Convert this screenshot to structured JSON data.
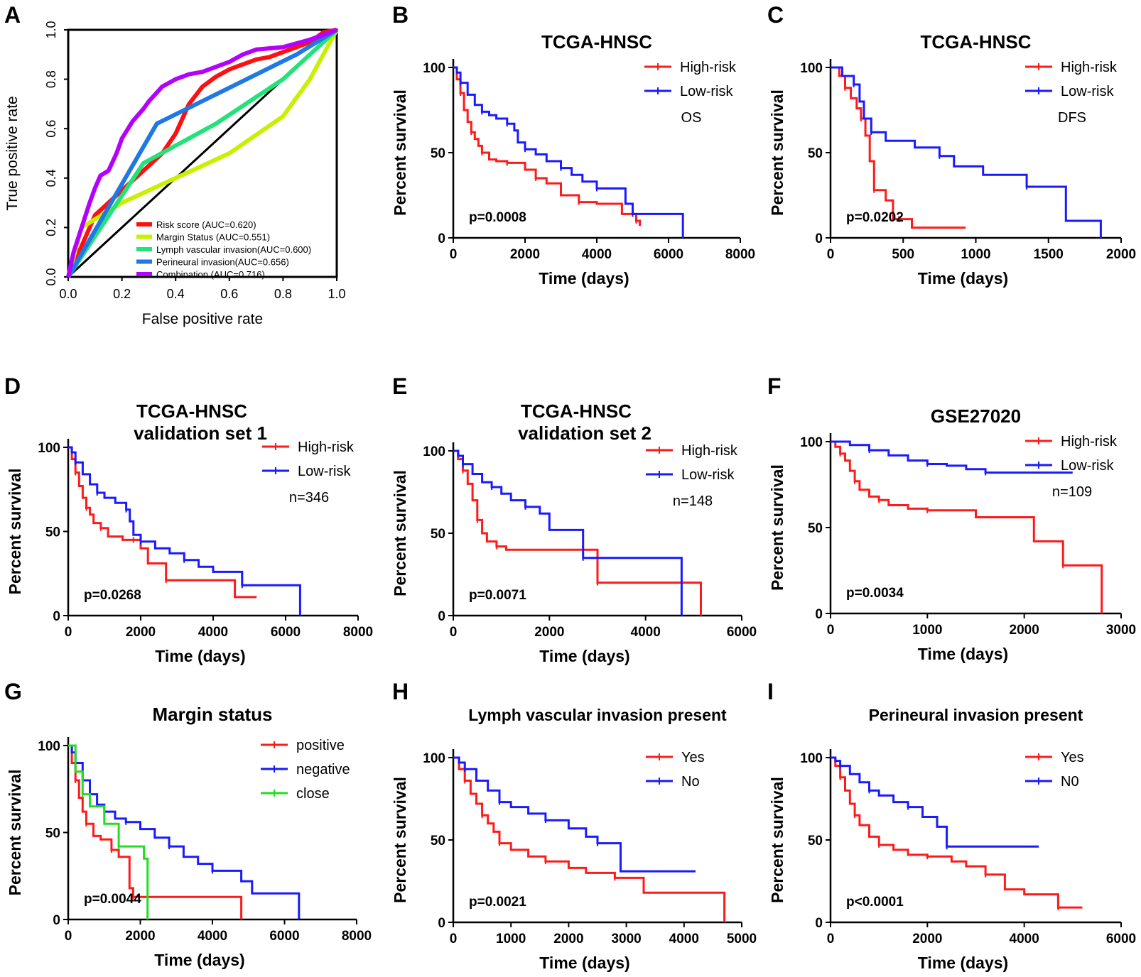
{
  "chart_data": [
    {
      "panel": "A",
      "type": "line",
      "xlabel": "False positive rate",
      "ylabel": "True positive rate",
      "xlim": [
        0,
        1
      ],
      "ylim": [
        0,
        1
      ],
      "x_ticks": [
        "0.0",
        "0.2",
        "0.4",
        "0.6",
        "0.8",
        "1.0"
      ],
      "y_ticks": [
        "0.0",
        "0.2",
        "0.4",
        "0.6",
        "0.8",
        "1.0"
      ],
      "legend_position": "bottom-right",
      "colors": {
        "reference": "#000000"
      },
      "series": [
        {
          "name": "Risk score (AUC=0.620)",
          "color": "#ff1010",
          "x": [
            0,
            0.04,
            0.1,
            0.15,
            0.2,
            0.25,
            0.3,
            0.35,
            0.4,
            0.45,
            0.5,
            0.55,
            0.6,
            0.65,
            0.7,
            0.75,
            0.8,
            0.85,
            0.9,
            0.95,
            1.0
          ],
          "y": [
            0,
            0.1,
            0.25,
            0.3,
            0.35,
            0.4,
            0.45,
            0.5,
            0.58,
            0.7,
            0.77,
            0.81,
            0.84,
            0.86,
            0.88,
            0.89,
            0.91,
            0.93,
            0.95,
            0.99,
            1.0
          ]
        },
        {
          "name": "Margin Status (AUC=0.551)",
          "color": "#c8f000",
          "x": [
            0,
            0.05,
            0.2,
            0.6,
            0.8,
            0.9,
            1.0
          ],
          "y": [
            0,
            0.2,
            0.3,
            0.5,
            0.65,
            0.8,
            1.0
          ]
        },
        {
          "name": "Lymph vascular invasion(AUC=0.600)",
          "color": "#22e27a",
          "x": [
            0,
            0.28,
            0.55,
            0.8,
            1.0
          ],
          "y": [
            0,
            0.46,
            0.62,
            0.8,
            1.0
          ]
        },
        {
          "name": "Perineural invasion(AUC=0.656)",
          "color": "#1e78e6",
          "x": [
            0,
            0.33,
            0.85,
            1.0
          ],
          "y": [
            0,
            0.62,
            0.9,
            1.0
          ]
        },
        {
          "name": "Combination (AUC=0.716)",
          "color": "#b400ff",
          "x": [
            0,
            0.02,
            0.05,
            0.08,
            0.1,
            0.12,
            0.15,
            0.18,
            0.2,
            0.24,
            0.28,
            0.3,
            0.35,
            0.4,
            0.45,
            0.5,
            0.55,
            0.6,
            0.65,
            0.7,
            0.8,
            0.9,
            1.0
          ],
          "y": [
            0,
            0.1,
            0.2,
            0.3,
            0.36,
            0.41,
            0.43,
            0.5,
            0.56,
            0.63,
            0.68,
            0.71,
            0.77,
            0.8,
            0.82,
            0.83,
            0.85,
            0.87,
            0.9,
            0.92,
            0.93,
            0.96,
            1.0
          ]
        }
      ]
    },
    {
      "panel": "B",
      "type": "line",
      "title": "TCGA-HNSC",
      "xlabel": "Time (days)",
      "ylabel": "Percent survival",
      "xlim": [
        0,
        8000
      ],
      "ylim": [
        0,
        100
      ],
      "x_ticks": [
        "0",
        "2000",
        "4000",
        "6000",
        "8000"
      ],
      "y_ticks": [
        "0",
        "50",
        "100"
      ],
      "pvalue": "p=0.0008",
      "note": "OS",
      "legend_position": "top-right",
      "series": [
        {
          "name": "High-risk",
          "color": "#ff1a1a",
          "x": [
            0,
            100,
            200,
            300,
            400,
            500,
            600,
            700,
            800,
            1000,
            1200,
            1500,
            1800,
            2000,
            2300,
            2600,
            3000,
            3500,
            4000,
            4700,
            5100,
            5200
          ],
          "y": [
            100,
            93,
            85,
            75,
            68,
            62,
            58,
            54,
            50,
            46,
            45,
            44,
            44,
            40,
            35,
            32,
            25,
            21,
            20,
            14,
            10,
            7
          ]
        },
        {
          "name": "Low-risk",
          "color": "#1a1aff",
          "x": [
            0,
            100,
            200,
            400,
            600,
            800,
            1000,
            1200,
            1500,
            1700,
            1800,
            2000,
            2300,
            2600,
            3000,
            3300,
            3600,
            4000,
            4400,
            4800,
            5000,
            5500,
            6400
          ],
          "y": [
            100,
            97,
            91,
            84,
            78,
            74,
            72,
            70,
            67,
            63,
            56,
            52,
            49,
            45,
            41,
            37,
            33,
            29,
            29,
            20,
            14,
            14,
            0
          ]
        }
      ]
    },
    {
      "panel": "C",
      "type": "line",
      "title": "TCGA-HNSC",
      "xlabel": "Time (days)",
      "ylabel": "Percent survival",
      "xlim": [
        0,
        2000
      ],
      "ylim": [
        0,
        100
      ],
      "x_ticks": [
        "0",
        "500",
        "1000",
        "1500",
        "2000"
      ],
      "y_ticks": [
        "0",
        "50",
        "100"
      ],
      "pvalue": "p=0.0202",
      "note": "DFS",
      "legend_position": "top-right",
      "series": [
        {
          "name": "High-risk",
          "color": "#ff1a1a",
          "x": [
            0,
            60,
            100,
            140,
            180,
            210,
            240,
            270,
            300,
            380,
            430,
            470,
            560,
            930
          ],
          "y": [
            100,
            95,
            88,
            82,
            76,
            70,
            60,
            45,
            28,
            22,
            11,
            11,
            6,
            6
          ]
        },
        {
          "name": "Low-risk",
          "color": "#1a1aff",
          "x": [
            0,
            80,
            160,
            200,
            230,
            280,
            380,
            580,
            750,
            850,
            1050,
            1350,
            1620,
            1860
          ],
          "y": [
            100,
            95,
            90,
            80,
            70,
            62,
            57,
            53,
            48,
            42,
            37,
            30,
            10,
            0
          ]
        }
      ]
    },
    {
      "panel": "D",
      "type": "line",
      "title": "TCGA-HNSC\nvalidation set 1",
      "xlabel": "Time (days)",
      "ylabel": "Percent survival",
      "xlim": [
        0,
        8000
      ],
      "ylim": [
        0,
        100
      ],
      "x_ticks": [
        "0",
        "2000",
        "4000",
        "6000",
        "8000"
      ],
      "y_ticks": [
        "0",
        "50",
        "100"
      ],
      "pvalue": "p=0.0268",
      "note": "n=346",
      "legend_position": "top-right",
      "series": [
        {
          "name": "High-risk",
          "color": "#ff1a1a",
          "x": [
            0,
            100,
            200,
            300,
            400,
            500,
            600,
            700,
            900,
            1100,
            1500,
            1800,
            2000,
            2200,
            2700,
            4000,
            4600,
            5200
          ],
          "y": [
            100,
            93,
            85,
            77,
            70,
            64,
            60,
            55,
            52,
            47,
            45,
            45,
            40,
            31,
            21,
            21,
            11,
            11
          ]
        },
        {
          "name": "Low-risk",
          "color": "#1a1aff",
          "x": [
            0,
            100,
            200,
            400,
            600,
            800,
            1000,
            1300,
            1600,
            1700,
            1800,
            2000,
            2400,
            2800,
            3200,
            3600,
            4000,
            4800,
            5000,
            6400
          ],
          "y": [
            100,
            97,
            91,
            84,
            78,
            73,
            70,
            67,
            63,
            56,
            48,
            44,
            40,
            37,
            33,
            29,
            26,
            18,
            18,
            0
          ]
        }
      ]
    },
    {
      "panel": "E",
      "type": "line",
      "title": "TCGA-HNSC\nvalidation set 2",
      "xlabel": "Time (days)",
      "ylabel": "Percent survival",
      "xlim": [
        0,
        6000
      ],
      "ylim": [
        0,
        100
      ],
      "x_ticks": [
        "0",
        "2000",
        "4000",
        "6000"
      ],
      "y_ticks": [
        "0",
        "50",
        "100"
      ],
      "pvalue": "p=0.0071",
      "note": "n=148",
      "legend_position": "top-right",
      "series": [
        {
          "name": "High-risk",
          "color": "#ff1a1a",
          "x": [
            0,
            100,
            200,
            300,
            400,
            500,
            600,
            700,
            900,
            1100,
            2500,
            3000,
            5150
          ],
          "y": [
            100,
            95,
            88,
            80,
            70,
            58,
            50,
            45,
            42,
            40,
            40,
            20,
            0
          ]
        },
        {
          "name": "Low-risk",
          "color": "#1a1aff",
          "x": [
            0,
            100,
            200,
            400,
            600,
            800,
            1000,
            1200,
            1500,
            1800,
            2000,
            2700,
            4750
          ],
          "y": [
            100,
            97,
            92,
            86,
            81,
            78,
            74,
            70,
            66,
            62,
            52,
            35,
            0
          ]
        }
      ]
    },
    {
      "panel": "F",
      "type": "line",
      "title": "GSE27020",
      "xlabel": "Time (days)",
      "ylabel": "Percent survival",
      "xlim": [
        0,
        3000
      ],
      "ylim": [
        0,
        100
      ],
      "x_ticks": [
        "0",
        "1000",
        "2000",
        "3000"
      ],
      "y_ticks": [
        "0",
        "50",
        "100"
      ],
      "pvalue": "p=0.0034",
      "note": "n=109",
      "legend_position": "top-right",
      "series": [
        {
          "name": "High-risk",
          "color": "#ff1a1a",
          "x": [
            0,
            50,
            100,
            150,
            200,
            250,
            300,
            400,
            500,
            600,
            800,
            1000,
            1500,
            2100,
            2400,
            2800
          ],
          "y": [
            100,
            97,
            93,
            89,
            83,
            77,
            72,
            68,
            66,
            63,
            61,
            60,
            56,
            42,
            28,
            0
          ]
        },
        {
          "name": "Low-risk",
          "color": "#1a1aff",
          "x": [
            0,
            200,
            400,
            600,
            800,
            1000,
            1200,
            1400,
            1600,
            2000,
            2500
          ],
          "y": [
            100,
            98,
            95,
            92,
            89,
            87,
            86,
            84,
            82,
            82,
            82
          ]
        }
      ]
    },
    {
      "panel": "G",
      "type": "line",
      "title": "Margin status",
      "xlabel": "Time (days)",
      "ylabel": "Percent survival",
      "xlim": [
        0,
        8000
      ],
      "ylim": [
        0,
        100
      ],
      "x_ticks": [
        "0",
        "2000",
        "4000",
        "6000",
        "8000"
      ],
      "y_ticks": [
        "0",
        "50",
        "100"
      ],
      "pvalue": "p=0.0044",
      "legend_position": "top-right",
      "series": [
        {
          "name": "positive",
          "color": "#ff1a1a",
          "x": [
            0,
            100,
            200,
            300,
            400,
            500,
            700,
            900,
            1200,
            1400,
            1700,
            1800,
            4800
          ],
          "y": [
            100,
            90,
            80,
            70,
            62,
            55,
            48,
            46,
            40,
            36,
            18,
            13,
            0
          ]
        },
        {
          "name": "negative",
          "color": "#1a1aff",
          "x": [
            0,
            100,
            200,
            400,
            600,
            800,
            1000,
            1300,
            1600,
            2000,
            2400,
            2800,
            3200,
            3600,
            4000,
            4800,
            5100,
            6400
          ],
          "y": [
            100,
            96,
            90,
            80,
            72,
            66,
            62,
            58,
            56,
            52,
            47,
            42,
            36,
            32,
            28,
            22,
            15,
            0
          ]
        },
        {
          "name": "close",
          "color": "#22dd22",
          "x": [
            0,
            200,
            400,
            600,
            1000,
            1400,
            2100,
            2200
          ],
          "y": [
            100,
            85,
            72,
            65,
            55,
            42,
            35,
            0
          ]
        }
      ]
    },
    {
      "panel": "H",
      "type": "line",
      "title": "Lymph vascular invasion present",
      "xlabel": "Time (days)",
      "ylabel": "Percent survival",
      "xlim": [
        0,
        5000
      ],
      "ylim": [
        0,
        100
      ],
      "x_ticks": [
        "0",
        "1000",
        "2000",
        "3000",
        "4000",
        "5000"
      ],
      "y_ticks": [
        "0",
        "50",
        "100"
      ],
      "pvalue": "p=0.0021",
      "legend_position": "top-right",
      "series": [
        {
          "name": "Yes",
          "color": "#ff1a1a",
          "x": [
            0,
            100,
            200,
            300,
            400,
            500,
            600,
            700,
            800,
            1000,
            1300,
            1600,
            2000,
            2300,
            2800,
            3300,
            4700
          ],
          "y": [
            100,
            93,
            86,
            78,
            72,
            65,
            60,
            55,
            48,
            44,
            40,
            37,
            33,
            30,
            27,
            18,
            0
          ]
        },
        {
          "name": "No",
          "color": "#1a1aff",
          "x": [
            0,
            100,
            200,
            400,
            600,
            800,
            1000,
            1300,
            1600,
            2000,
            2300,
            2500,
            2900,
            4200
          ],
          "y": [
            100,
            97,
            93,
            86,
            80,
            73,
            70,
            66,
            62,
            57,
            52,
            48,
            31,
            31
          ]
        }
      ]
    },
    {
      "panel": "I",
      "type": "line",
      "title": "Perineural invasion present",
      "xlabel": "Time (days)",
      "ylabel": "Percent survival",
      "xlim": [
        0,
        6000
      ],
      "ylim": [
        0,
        100
      ],
      "x_ticks": [
        "0",
        "2000",
        "4000",
        "6000"
      ],
      "y_ticks": [
        "0",
        "50",
        "100"
      ],
      "pvalue": "p<0.0001",
      "legend_position": "top-right",
      "series": [
        {
          "name": "Yes",
          "color": "#ff1a1a",
          "x": [
            0,
            100,
            200,
            300,
            400,
            500,
            600,
            800,
            1000,
            1300,
            1600,
            2000,
            2500,
            2800,
            3200,
            3600,
            4000,
            4700,
            5200
          ],
          "y": [
            100,
            95,
            88,
            80,
            72,
            65,
            59,
            52,
            47,
            44,
            41,
            40,
            37,
            34,
            29,
            20,
            17,
            9,
            9
          ]
        },
        {
          "name": "N0",
          "color": "#1a1aff",
          "x": [
            0,
            100,
            200,
            400,
            600,
            800,
            1000,
            1300,
            1600,
            1900,
            2200,
            2400,
            4300
          ],
          "y": [
            100,
            98,
            95,
            90,
            85,
            80,
            77,
            73,
            70,
            64,
            58,
            46,
            46
          ]
        }
      ]
    }
  ],
  "panel_letters": [
    "A",
    "B",
    "C",
    "D",
    "E",
    "F",
    "G",
    "H",
    "I"
  ]
}
